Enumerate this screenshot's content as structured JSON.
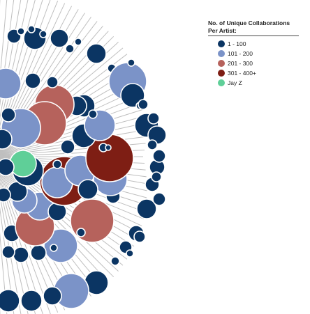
{
  "chart_data": {
    "type": "bubble",
    "title": "",
    "legend": {
      "title": "No. of Unique Collaborations Per Artist:",
      "placement": "top-right",
      "items": [
        {
          "label": "1 - 100",
          "color": "#0b3563"
        },
        {
          "label": "101 - 200",
          "color": "#7b93c8"
        },
        {
          "label": "201 - 300",
          "color": "#b6625c"
        },
        {
          "label": "301 - 400+",
          "color": "#7e1e14"
        },
        {
          "label": "Jay Z",
          "color": "#5fcf98"
        }
      ]
    },
    "center": {
      "label": "Jay Z",
      "category": "Jay Z"
    },
    "bubbles": [
      {
        "category": "1 - 100",
        "size": 40
      },
      {
        "category": "1 - 100",
        "size": 55
      },
      {
        "category": "1 - 100",
        "size": 30
      },
      {
        "category": "101 - 200",
        "size": 150
      },
      {
        "category": "101 - 200",
        "size": 160
      },
      {
        "category": "201 - 300",
        "size": 250
      },
      {
        "category": "201 - 300",
        "size": 280
      },
      {
        "category": "301 - 400+",
        "size": 380
      },
      {
        "category": "301 - 400+",
        "size": 360
      },
      {
        "category": "1 - 100",
        "size": 45
      },
      {
        "category": "101 - 200",
        "size": 130
      },
      {
        "category": "201 - 300",
        "size": 230
      },
      {
        "category": "101 - 200",
        "size": 140
      },
      {
        "category": "1 - 100",
        "size": 70
      },
      {
        "category": "1 - 100",
        "size": 20
      },
      {
        "category": "1 - 100",
        "size": 60
      },
      {
        "category": "101 - 200",
        "size": 170
      }
    ]
  }
}
